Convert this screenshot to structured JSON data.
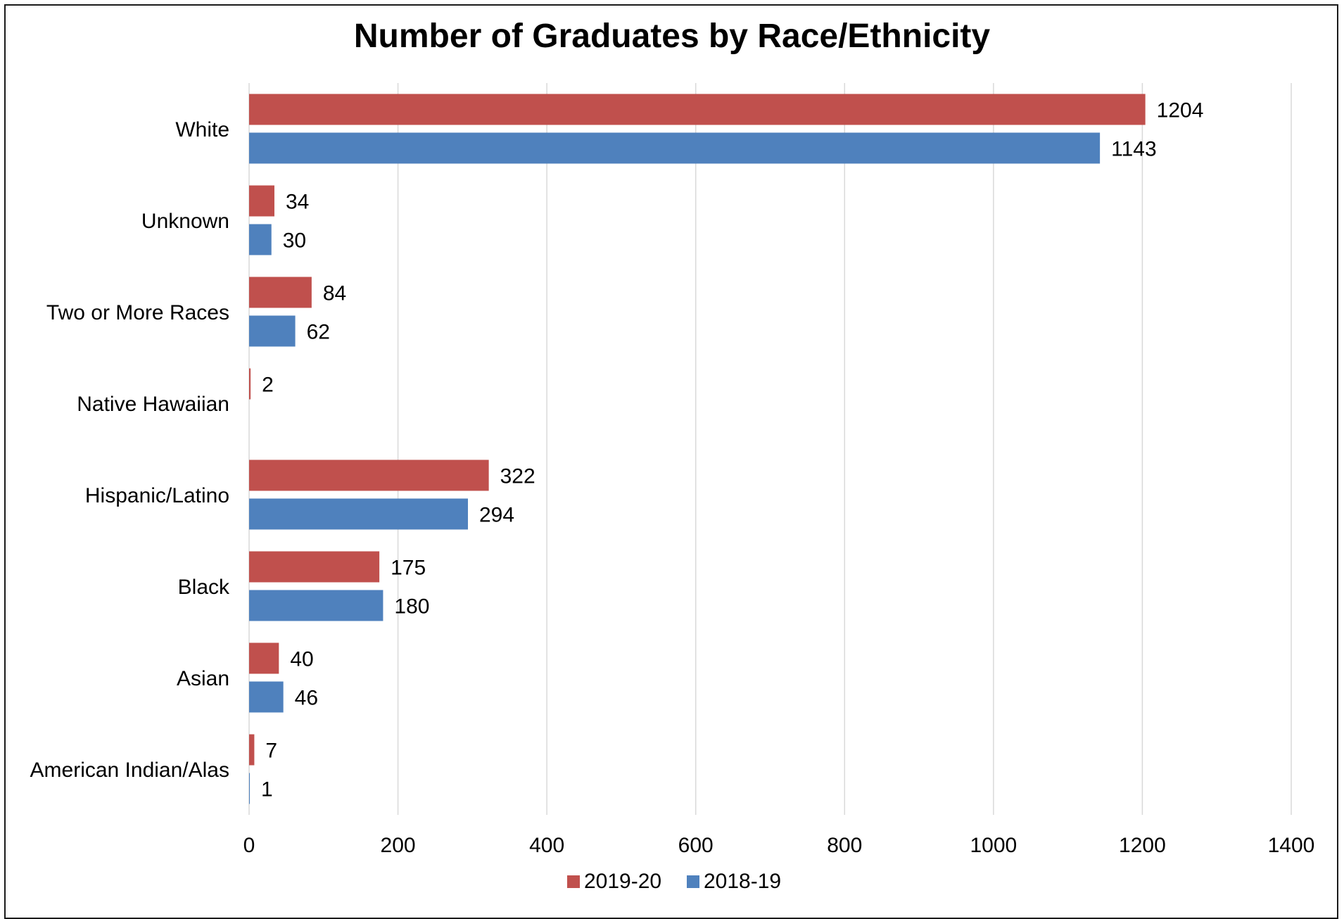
{
  "chart_data": {
    "type": "bar",
    "orientation": "horizontal",
    "title": "Number of Graduates by Race/Ethnicity",
    "categories": [
      "White",
      "Unknown",
      "Two or More Races",
      "Native Hawaiian",
      "Hispanic/Latino",
      "Black",
      "Asian",
      "American Indian/Alas"
    ],
    "series": [
      {
        "name": "2019-20",
        "color": "#C0504D",
        "values": [
          1204,
          34,
          84,
          2,
          322,
          175,
          40,
          7
        ]
      },
      {
        "name": "2018-19",
        "color": "#4F81BD",
        "values": [
          1143,
          30,
          62,
          0,
          294,
          180,
          46,
          1
        ]
      }
    ],
    "data_labels": [
      [
        "1204",
        "34",
        "84",
        "2",
        "322",
        "175",
        "40",
        "7"
      ],
      [
        "1143",
        "30",
        "62",
        "",
        "294",
        "180",
        "46",
        "1"
      ]
    ],
    "xlim": [
      0,
      1400
    ],
    "xticks": [
      "0",
      "200",
      "400",
      "600",
      "800",
      "1000",
      "1200",
      "1400"
    ],
    "grid": true,
    "legend_position": "bottom"
  }
}
